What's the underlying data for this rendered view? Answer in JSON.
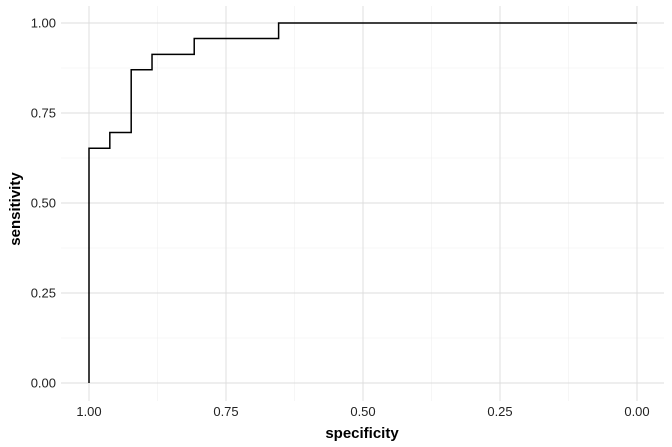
{
  "chart_data": {
    "type": "line",
    "title": "",
    "xlabel": "specificity",
    "ylabel": "sensitivity",
    "xlim": [
      1.0,
      0.0
    ],
    "ylim": [
      0.0,
      1.0
    ],
    "x_reversed": true,
    "grid": true,
    "x_ticks": [
      1.0,
      0.75,
      0.5,
      0.25,
      0.0
    ],
    "x_tick_labels": [
      "1.00",
      "0.75",
      "0.50",
      "0.25",
      "0.00"
    ],
    "y_ticks": [
      0.0,
      0.25,
      0.5,
      0.75,
      1.0
    ],
    "y_tick_labels": [
      "0.00",
      "0.25",
      "0.50",
      "0.75",
      "1.00"
    ],
    "series": [
      {
        "step": true,
        "color": "#000000",
        "points": [
          {
            "x": 1.0,
            "y": 0.0
          },
          {
            "x": 1.0,
            "y": 0.652
          },
          {
            "x": 0.962,
            "y": 0.652
          },
          {
            "x": 0.962,
            "y": 0.696
          },
          {
            "x": 0.923,
            "y": 0.696
          },
          {
            "x": 0.923,
            "y": 0.87
          },
          {
            "x": 0.885,
            "y": 0.87
          },
          {
            "x": 0.885,
            "y": 0.913
          },
          {
            "x": 0.808,
            "y": 0.913
          },
          {
            "x": 0.808,
            "y": 0.957
          },
          {
            "x": 0.654,
            "y": 0.957
          },
          {
            "x": 0.654,
            "y": 1.0
          },
          {
            "x": 0.0,
            "y": 1.0
          }
        ]
      }
    ]
  }
}
